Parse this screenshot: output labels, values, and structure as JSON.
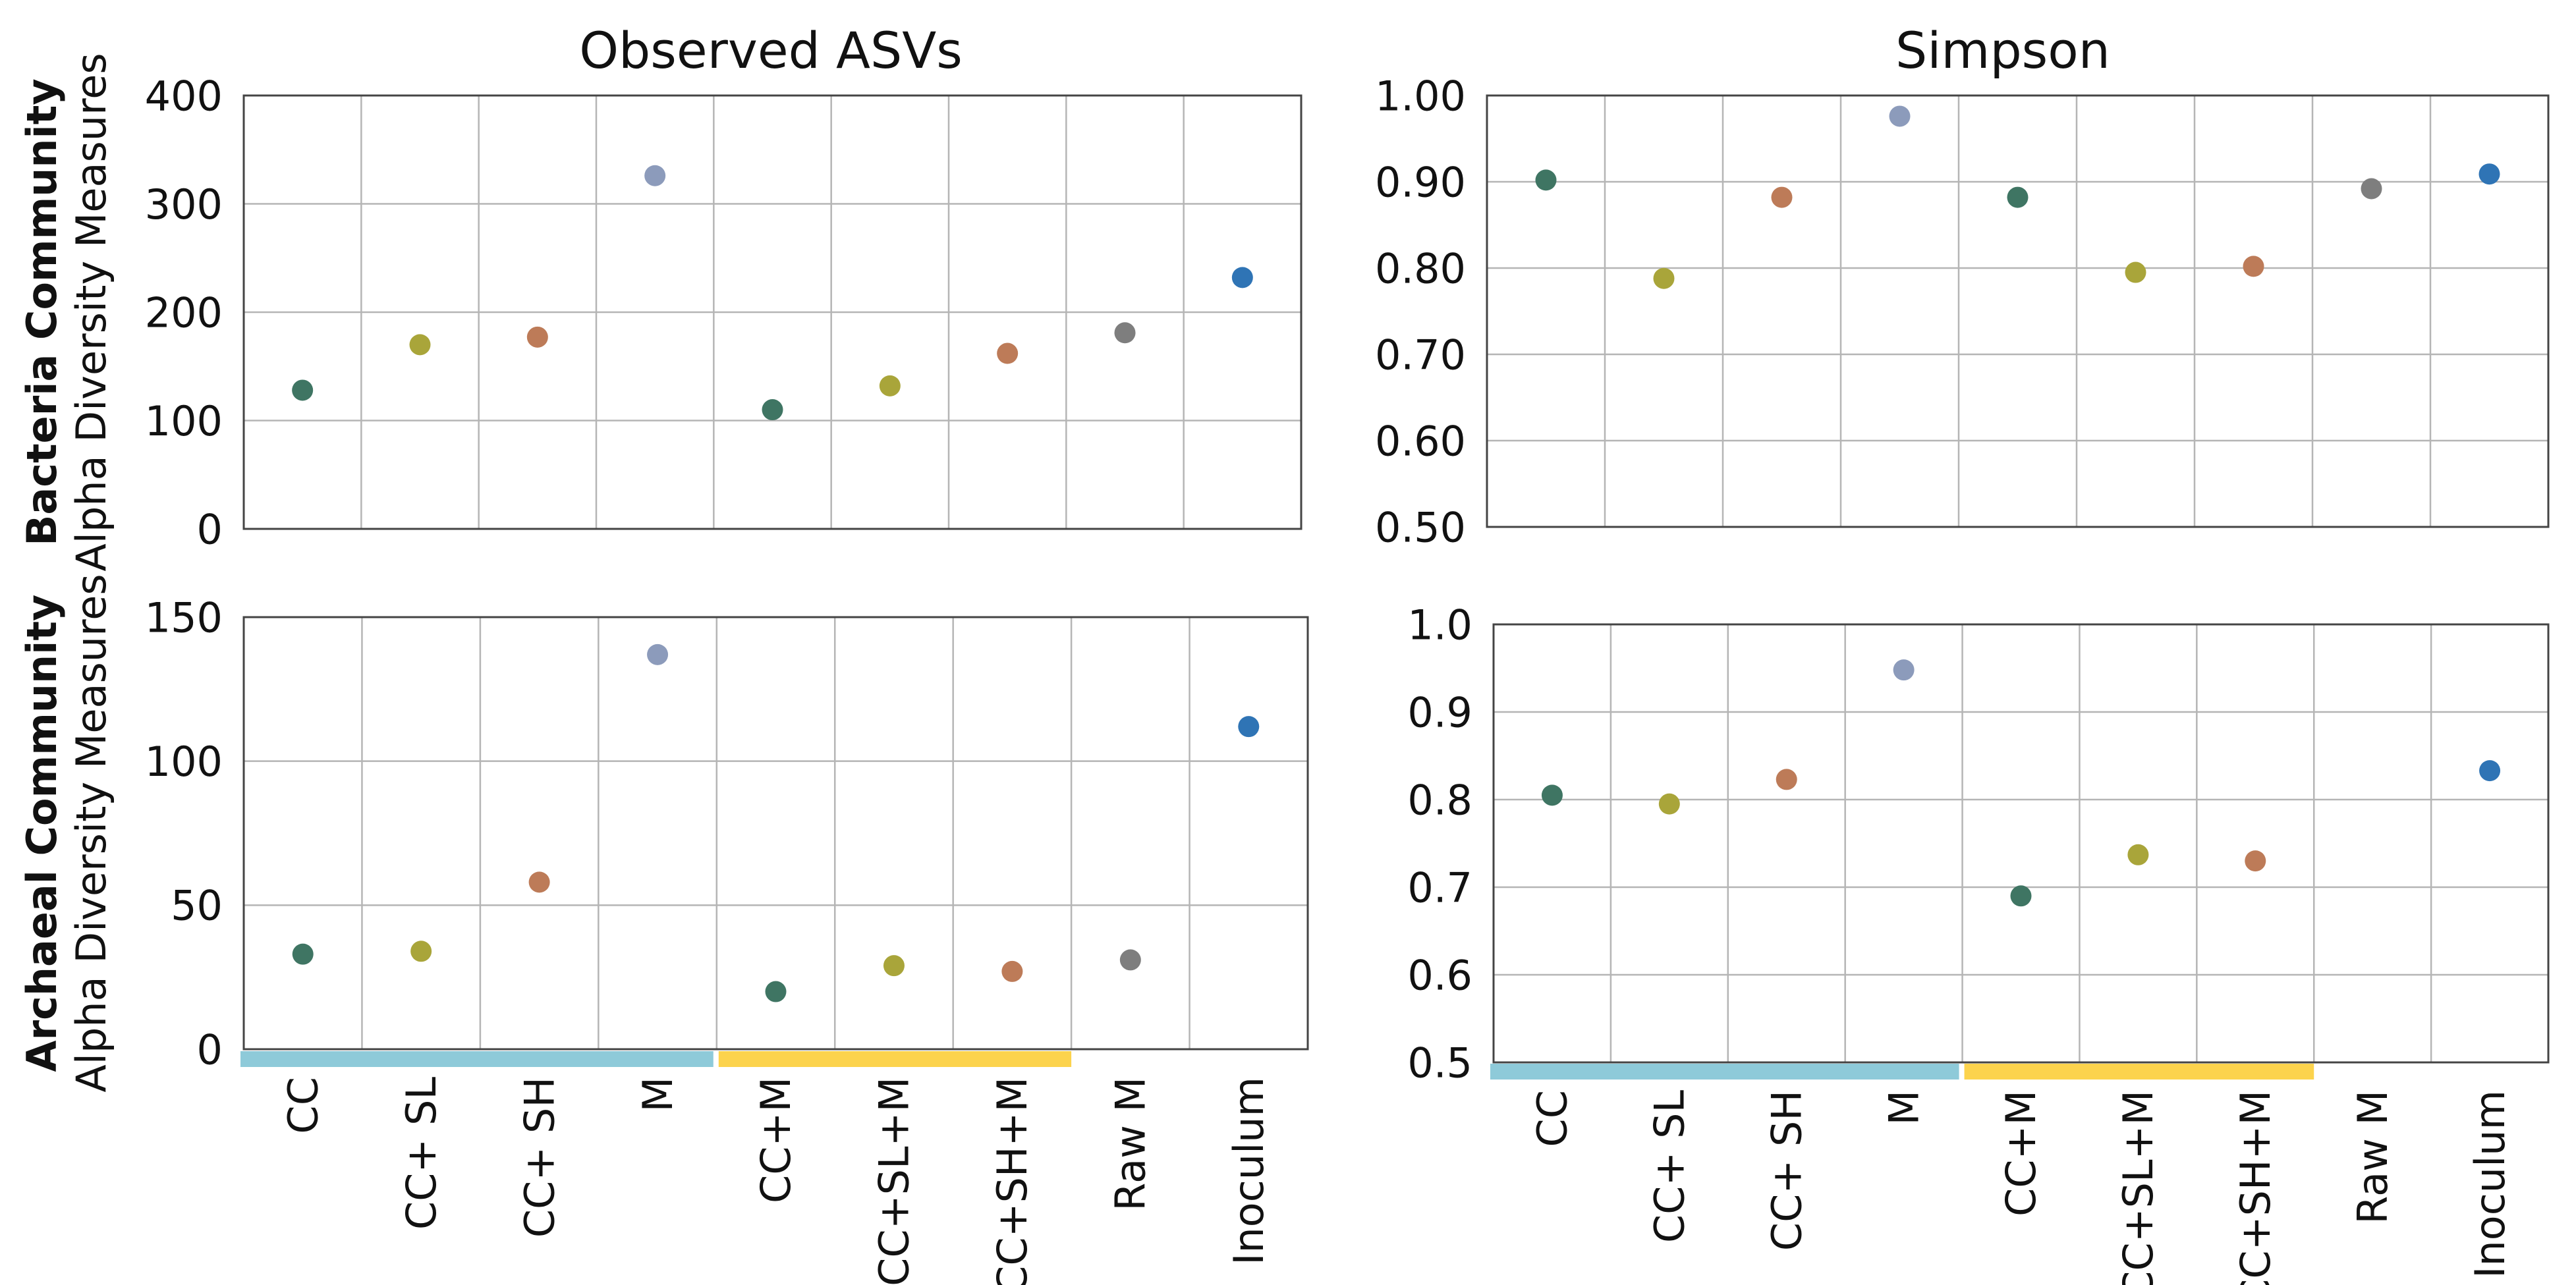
{
  "categories": [
    "CC",
    "CC+ SL",
    "CC+ SH",
    "M",
    "CC+M",
    "CC+SL+M",
    "CC+SH+M",
    "Raw M",
    "Inoculum"
  ],
  "category_colors": [
    "#3f7563",
    "#a9a53a",
    "#bd7b58",
    "#8c9bbb",
    "#3f7563",
    "#a9a53a",
    "#bd7b58",
    "#7e7e7e",
    "#2f74b5"
  ],
  "group_bar_colors": {
    "without_manure": "#8ecad9",
    "with_manure": "#fcd34d"
  },
  "row_labels": {
    "bacteria": {
      "community": "Bacteria Community",
      "measure": "Alpha Diversity Measures"
    },
    "archaea": {
      "community": "Archaeal  Community",
      "measure": "Alpha Diversity Measures"
    }
  },
  "column_titles": [
    "Observed ASVs",
    "Simpson"
  ],
  "chart_data": [
    {
      "type": "scatter",
      "title": "Observed ASVs",
      "row": "Bacteria Community",
      "categories": [
        "CC",
        "CC+ SL",
        "CC+ SH",
        "M",
        "CC+M",
        "CC+SL+M",
        "CC+SH+M",
        "Raw M",
        "Inoculum"
      ],
      "values": [
        128,
        170,
        177,
        326,
        110,
        132,
        162,
        181,
        232
      ],
      "ylim": [
        0,
        400
      ],
      "yticks": [
        "0",
        "100",
        "200",
        "300",
        "400"
      ],
      "grid": true
    },
    {
      "type": "scatter",
      "title": "Simpson",
      "row": "Bacteria Community",
      "categories": [
        "CC",
        "CC+ SL",
        "CC+ SH",
        "M",
        "CC+M",
        "CC+SL+M",
        "CC+SH+M",
        "Raw M",
        "Inoculum"
      ],
      "values": [
        0.902,
        0.788,
        0.882,
        0.976,
        0.882,
        0.795,
        0.802,
        0.892,
        0.909
      ],
      "ylim": [
        0.5,
        1.0
      ],
      "yticks": [
        "0.50",
        "0.60",
        "0.70",
        "0.80",
        "0.90",
        "1.00"
      ],
      "grid": true
    },
    {
      "type": "scatter",
      "title": "",
      "row": "Archaeal  Community",
      "categories": [
        "CC",
        "CC+ SL",
        "CC+ SH",
        "M",
        "CC+M",
        "CC+SL+M",
        "CC+SH+M",
        "Raw M",
        "Inoculum"
      ],
      "values": [
        33,
        34,
        58,
        137,
        20,
        29,
        27,
        31,
        112
      ],
      "ylim": [
        0,
        150
      ],
      "yticks": [
        "0",
        "50",
        "100",
        "150"
      ],
      "grid": true
    },
    {
      "type": "scatter",
      "title": "",
      "row": "Archaeal  Community",
      "categories": [
        "CC",
        "CC+ SL",
        "CC+ SH",
        "M",
        "CC+M",
        "CC+SL+M",
        "CC+SH+M",
        "Raw M",
        "Inoculum"
      ],
      "values": [
        0.805,
        0.795,
        0.823,
        0.948,
        0.69,
        0.737,
        0.73,
        null,
        0.833
      ],
      "ylim": [
        0.5,
        1.0
      ],
      "yticks": [
        "0.5",
        "0.6",
        "0.7",
        "0.8",
        "0.9",
        "1.0"
      ],
      "grid": true
    }
  ]
}
